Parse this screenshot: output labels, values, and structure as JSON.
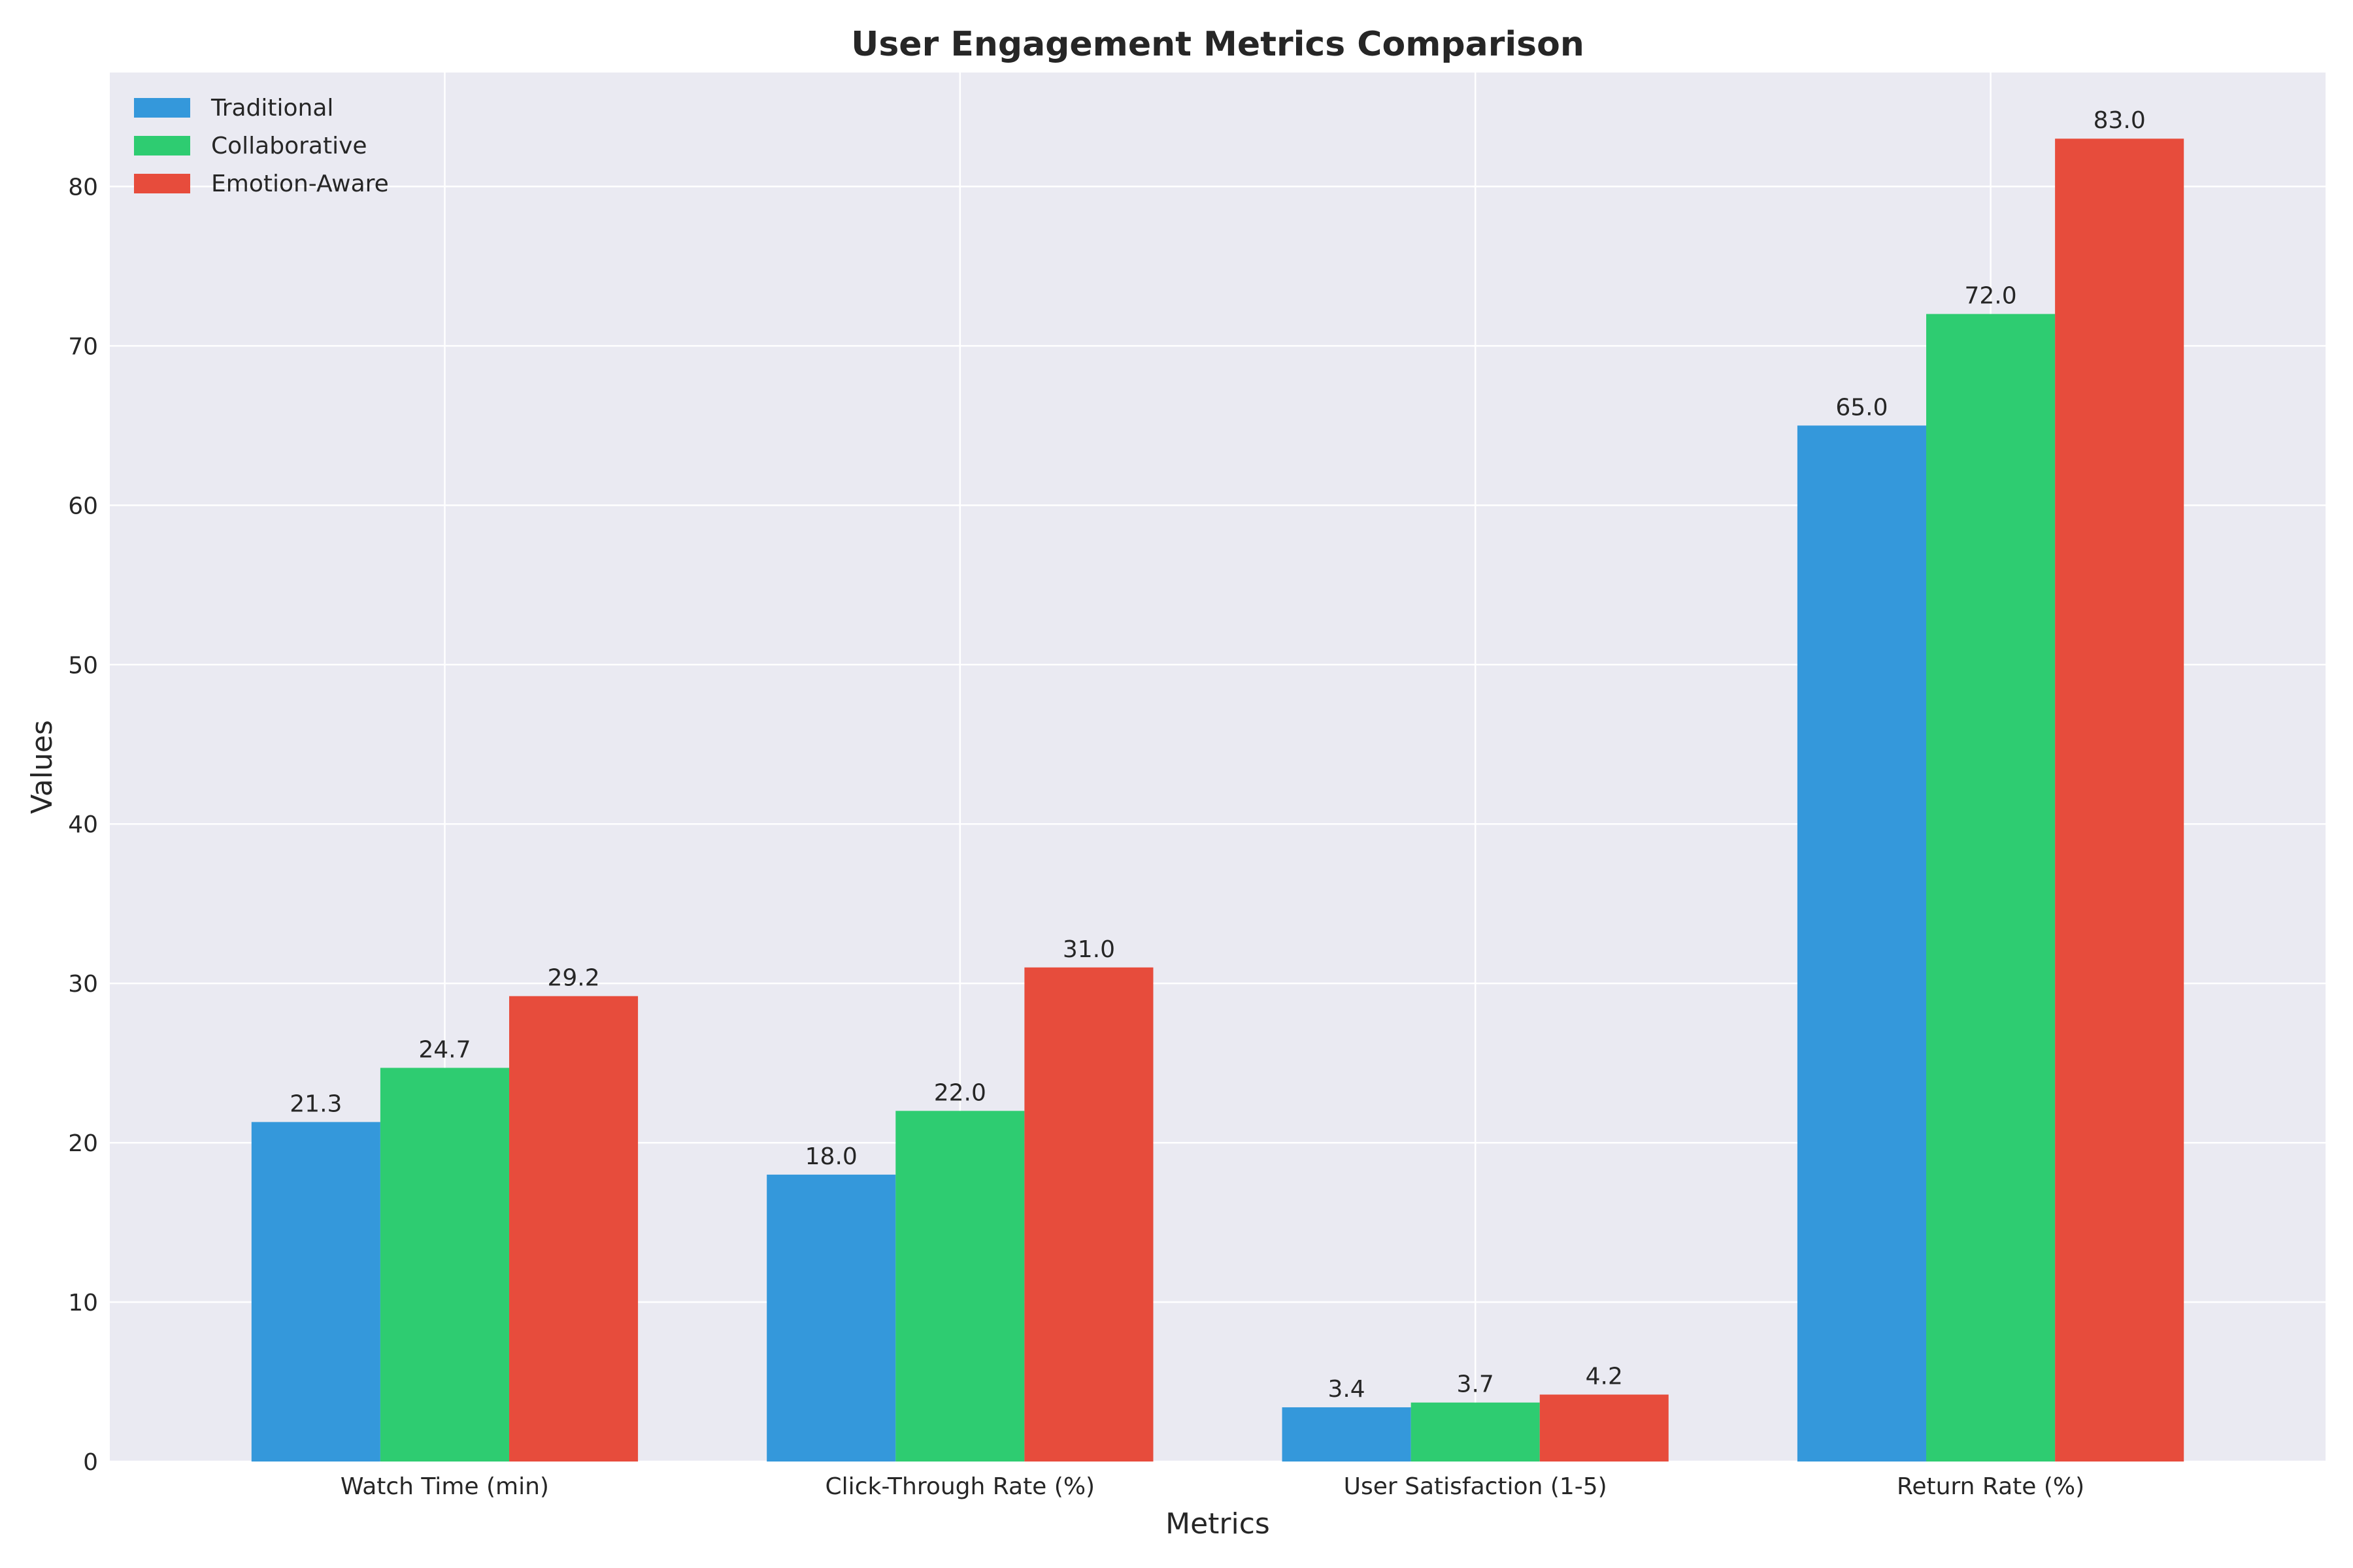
{
  "chart_data": {
    "type": "bar",
    "title": "User Engagement Metrics Comparison",
    "xlabel": "Metrics",
    "ylabel": "Values",
    "categories": [
      "Watch Time (min)",
      "Click-Through Rate (%)",
      "User Satisfaction (1-5)",
      "Return Rate (%)"
    ],
    "series": [
      {
        "name": "Traditional",
        "color": "#3498db",
        "values": [
          21.3,
          18.0,
          3.4,
          65.0
        ],
        "labels": [
          "21.3",
          "18.0",
          "3.4",
          "65.0"
        ]
      },
      {
        "name": "Collaborative",
        "color": "#2ecc71",
        "values": [
          24.7,
          22.0,
          3.7,
          72.0
        ],
        "labels": [
          "24.7",
          "22.0",
          "3.7",
          "72.0"
        ]
      },
      {
        "name": "Emotion-Aware",
        "color": "#e74c3c",
        "values": [
          29.2,
          31.0,
          4.2,
          83.0
        ],
        "labels": [
          "29.2",
          "31.0",
          "4.2",
          "83.0"
        ]
      }
    ],
    "ylim": [
      0,
      87.15
    ],
    "yticks": [
      0,
      10,
      20,
      30,
      40,
      50,
      60,
      70,
      80
    ],
    "ytick_labels": [
      "0",
      "10",
      "20",
      "30",
      "40",
      "50",
      "60",
      "70",
      "80"
    ],
    "grid": true,
    "legend_position": "top-left",
    "background_color": "#eaeaf2",
    "grid_color": "#ffffff"
  }
}
